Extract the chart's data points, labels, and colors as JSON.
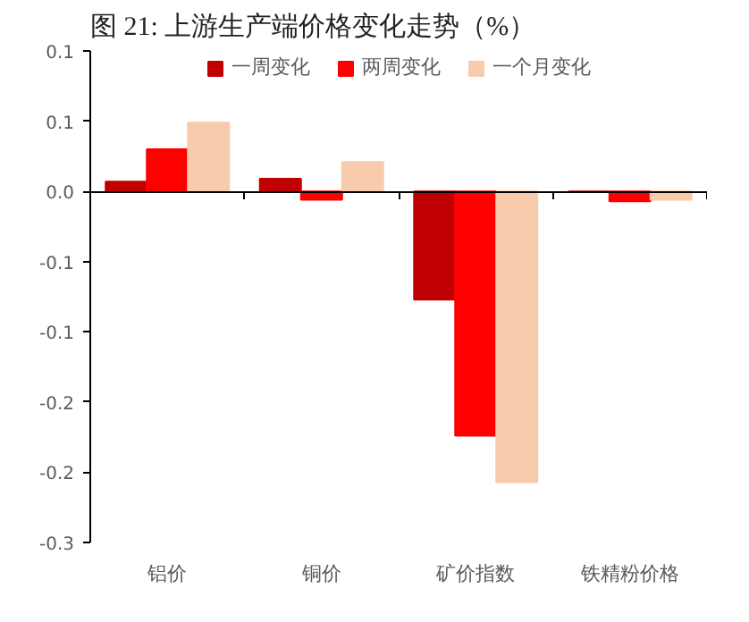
{
  "chart_data": {
    "type": "bar",
    "title": "图 21:    上游生产端价格变化走势（%）",
    "categories": [
      "铝价",
      "铜价",
      "矿价指数",
      "铁精粉价格"
    ],
    "series": [
      {
        "name": "一周变化",
        "color": "#c00000",
        "values": [
          0.007,
          0.009,
          -0.077,
          0.0
        ]
      },
      {
        "name": "两周变化",
        "color": "#ff0000",
        "values": [
          0.03,
          -0.006,
          -0.174,
          -0.007
        ]
      },
      {
        "name": "一个月变化",
        "color": "#f8cbad",
        "values": [
          0.049,
          0.021,
          -0.207,
          -0.006
        ]
      }
    ],
    "ylim": [
      -0.25,
      0.1
    ],
    "yticks": [
      {
        "value": 0.1,
        "label": "0.1"
      },
      {
        "value": 0.05,
        "label": "0.1"
      },
      {
        "value": 0,
        "label": "0.0"
      },
      {
        "value": -0.05,
        "label": "-0.1"
      },
      {
        "value": -0.1,
        "label": "-0.1"
      },
      {
        "value": -0.15,
        "label": "-0.2"
      },
      {
        "value": -0.2,
        "label": "-0.2"
      },
      {
        "value": -0.25,
        "label": "-0.3"
      }
    ],
    "legend": "top"
  }
}
